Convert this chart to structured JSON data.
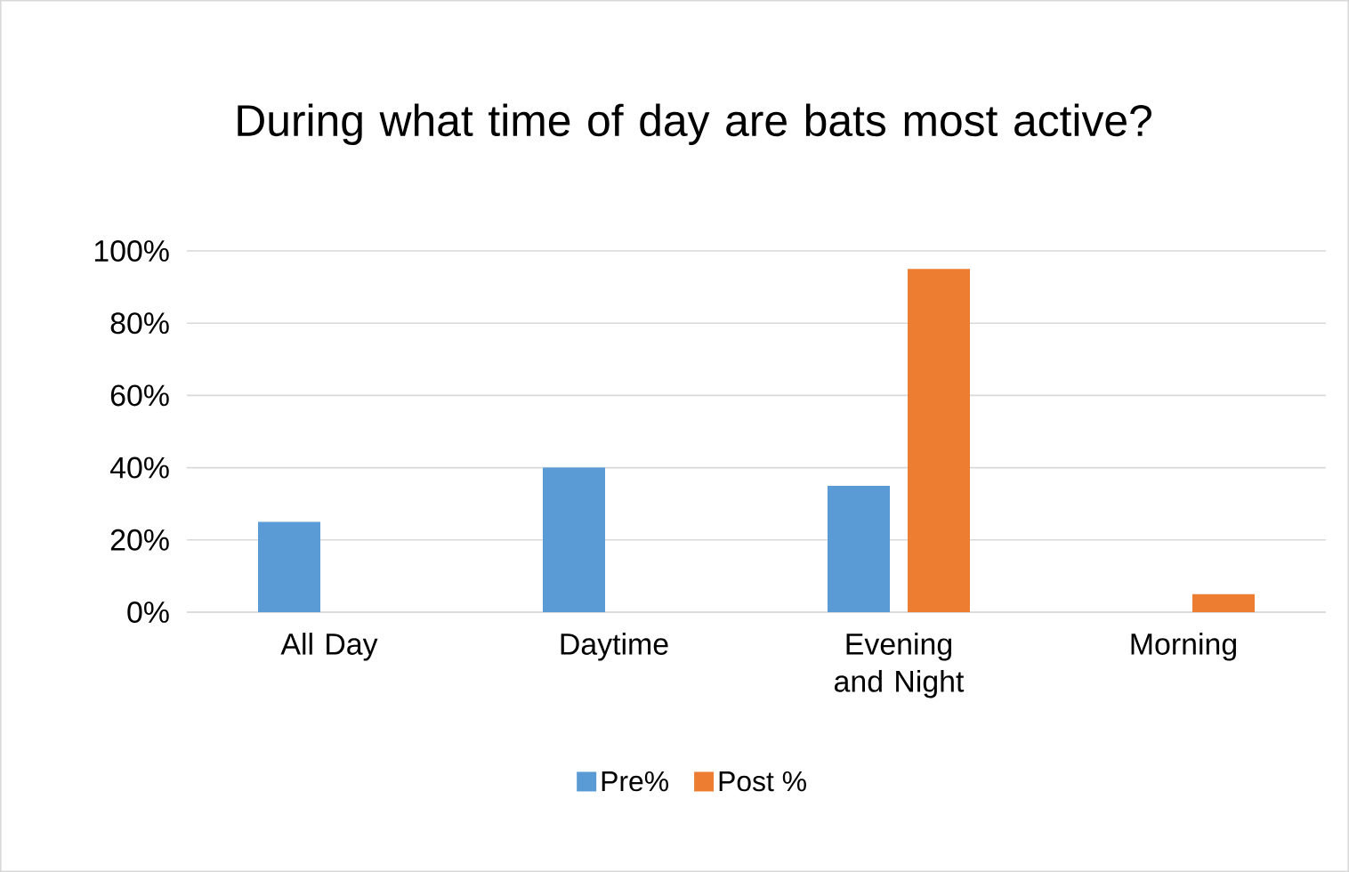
{
  "chart_data": {
    "type": "bar",
    "title": "During what time of day are bats most active?",
    "categories": [
      "All Day",
      "Daytime",
      "Evening and Night",
      "Morning"
    ],
    "series": [
      {
        "name": "Pre%",
        "color": "#5b9bd5",
        "values": [
          25,
          40,
          35,
          0
        ]
      },
      {
        "name": "Post %",
        "color": "#ed7d31",
        "values": [
          0,
          0,
          95,
          5
        ]
      }
    ],
    "ylim": [
      0,
      100
    ],
    "yticks": [
      {
        "value": 0,
        "label": "0%"
      },
      {
        "value": 20,
        "label": "20%"
      },
      {
        "value": 40,
        "label": "40%"
      },
      {
        "value": 60,
        "label": "60%"
      },
      {
        "value": 80,
        "label": "80%"
      },
      {
        "value": 100,
        "label": "100%"
      }
    ],
    "grid": "y",
    "legend": "bottom"
  }
}
